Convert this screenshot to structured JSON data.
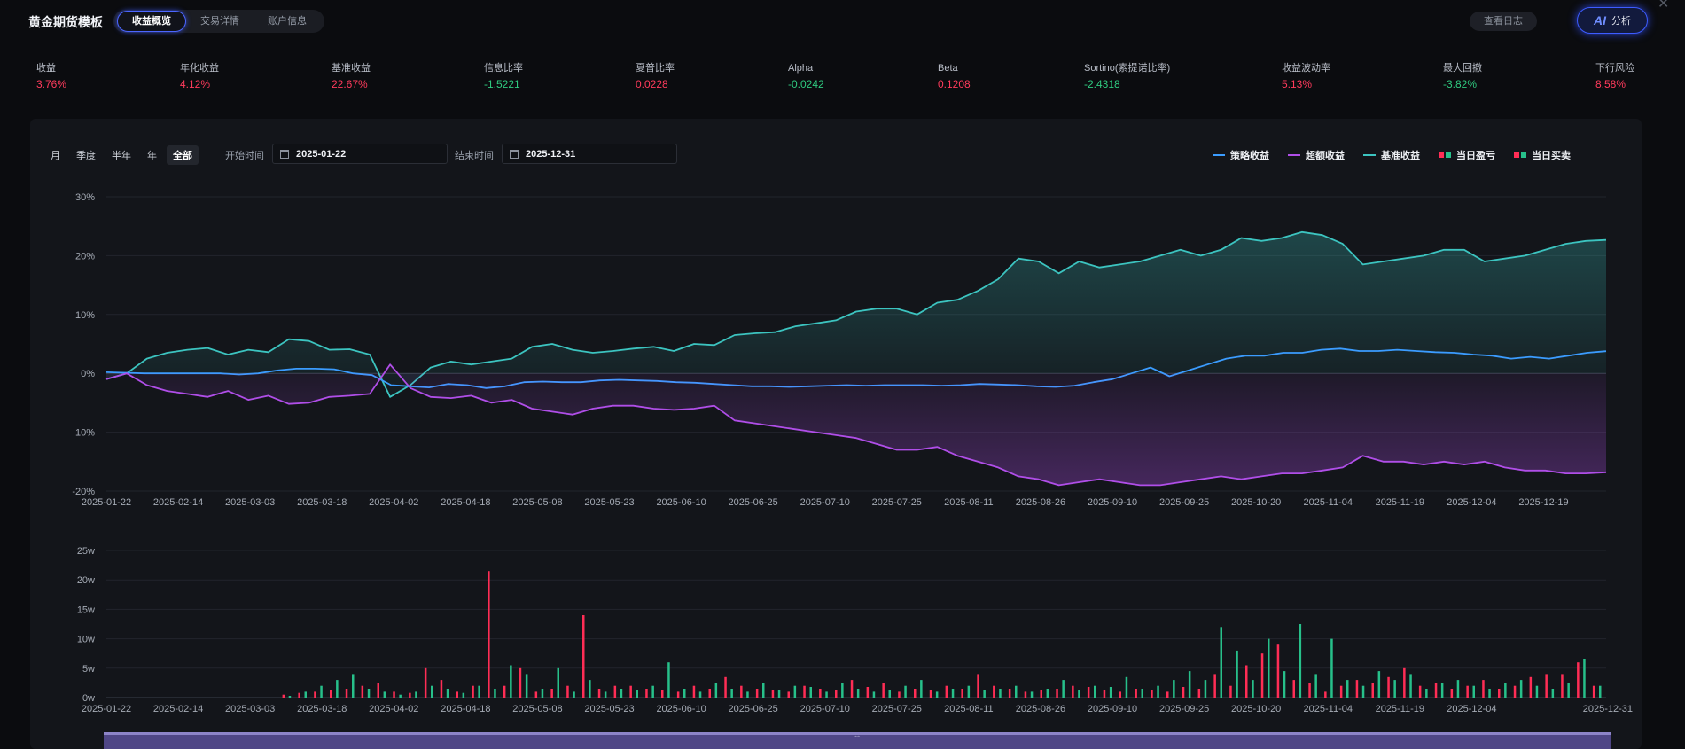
{
  "app": {
    "title": "黄金期货模板"
  },
  "tabs": [
    {
      "label": "收益概览",
      "active": true
    },
    {
      "label": "交易详情",
      "active": false
    },
    {
      "label": "账户信息",
      "active": false
    }
  ],
  "header": {
    "log_label": "查看日志",
    "ai_glyph": "AI",
    "ai_label": "分析"
  },
  "metrics": [
    {
      "label": "收益",
      "value": "3.76%",
      "tone": "up"
    },
    {
      "label": "年化收益",
      "value": "4.12%",
      "tone": "up"
    },
    {
      "label": "基准收益",
      "value": "22.67%",
      "tone": "up"
    },
    {
      "label": "信息比率",
      "value": "-1.5221",
      "tone": "down"
    },
    {
      "label": "夏普比率",
      "value": "0.0228",
      "tone": "up"
    },
    {
      "label": "Alpha",
      "value": "-0.0242",
      "tone": "down"
    },
    {
      "label": "Beta",
      "value": "0.1208",
      "tone": "up"
    },
    {
      "label": "Sortino(索提诺比率)",
      "value": "-2.4318",
      "tone": "down"
    },
    {
      "label": "收益波动率",
      "value": "5.13%",
      "tone": "up"
    },
    {
      "label": "最大回撤",
      "value": "-3.82%",
      "tone": "down"
    },
    {
      "label": "下行风险",
      "value": "8.58%",
      "tone": "up"
    }
  ],
  "filters": {
    "periods": [
      {
        "label": "月",
        "active": false
      },
      {
        "label": "季度",
        "active": false
      },
      {
        "label": "半年",
        "active": false
      },
      {
        "label": "年",
        "active": false
      },
      {
        "label": "全部",
        "active": true
      }
    ],
    "start_label": "开始时间",
    "start_value": "2025-01-22",
    "end_label": "结束时间",
    "end_value": "2025-12-31"
  },
  "legend": [
    {
      "label": "策略收益",
      "color": "#3b9cff",
      "kind": "line"
    },
    {
      "label": "超额收益",
      "color": "#b04ee8",
      "kind": "line"
    },
    {
      "label": "基准收益",
      "color": "#3cc4c0",
      "kind": "line"
    },
    {
      "label": "当日盈亏",
      "colors": [
        "#ff2d55",
        "#27c08a"
      ],
      "kind": "squares"
    },
    {
      "label": "当日买卖",
      "colors": [
        "#ff2d55",
        "#27c08a"
      ],
      "kind": "squares"
    }
  ],
  "colors": {
    "up": "#ff3b5c",
    "down": "#2fc97f",
    "accent": "#4c66ff"
  },
  "chart_data": [
    {
      "type": "line",
      "title": "",
      "ylim": [
        -20,
        30
      ],
      "y_ticks": [
        "30%",
        "20%",
        "10%",
        "0%",
        "-10%",
        "-20%"
      ],
      "y_tick_values": [
        30,
        20,
        10,
        0,
        -10,
        -20
      ],
      "x_ticks": [
        "2025-01-22",
        "2025-02-14",
        "2025-03-03",
        "2025-03-18",
        "2025-04-02",
        "2025-04-18",
        "2025-05-08",
        "2025-05-23",
        "2025-06-10",
        "2025-06-25",
        "2025-07-10",
        "2025-07-25",
        "2025-08-11",
        "2025-08-26",
        "2025-09-10",
        "2025-09-25",
        "2025-10-20",
        "2025-11-04",
        "2025-11-19",
        "2025-12-04",
        "2025-12-19"
      ],
      "series": [
        {
          "name": "基准收益",
          "color": "#3cc4c0",
          "fill": true,
          "values": [
            -1,
            0,
            2.5,
            3.5,
            4,
            4.3,
            3.2,
            4,
            3.6,
            5.8,
            5.5,
            4,
            4.1,
            3.2,
            -4,
            -2,
            1,
            2,
            1.5,
            2,
            2.5,
            4.5,
            5,
            4,
            3.5,
            3.8,
            4.2,
            4.5,
            3.8,
            5,
            4.8,
            6.5,
            6.8,
            7,
            8,
            8.5,
            9,
            10.5,
            11,
            11,
            10,
            12,
            12.5,
            14,
            16,
            19.5,
            19,
            17,
            19,
            18,
            18.5,
            19,
            20,
            21,
            20,
            21,
            23,
            22.5,
            23,
            24,
            23.5,
            22,
            18.5,
            19,
            19.5,
            20,
            21,
            21,
            19,
            19.5,
            20,
            21,
            22,
            22.5,
            22.67
          ]
        },
        {
          "name": "策略收益",
          "color": "#3b9cff",
          "fill": false,
          "values": [
            0.2,
            0.1,
            0,
            0,
            0,
            0,
            0,
            -0.2,
            0,
            0.5,
            0.8,
            0.8,
            0.7,
            0,
            -0.3,
            -2,
            -2.2,
            -2.4,
            -1.8,
            -2,
            -2.5,
            -2.2,
            -1.5,
            -1.4,
            -1.5,
            -1.5,
            -1.2,
            -1.1,
            -1.2,
            -1.3,
            -1.5,
            -1.6,
            -1.8,
            -2,
            -2.2,
            -2.2,
            -2.3,
            -2.2,
            -2.1,
            -2,
            -2.1,
            -2,
            -2,
            -2,
            -2.1,
            -2,
            -1.8,
            -1.9,
            -2,
            -2.2,
            -2.3,
            -2.1,
            -1.5,
            -1,
            0,
            1,
            -0.5,
            0.5,
            1.5,
            2.5,
            3,
            3,
            3.5,
            3.5,
            4,
            4.2,
            3.8,
            3.8,
            4,
            3.8,
            3.6,
            3.5,
            3.2,
            3,
            2.5,
            2.8,
            2.5,
            3,
            3.5,
            3.76
          ]
        },
        {
          "name": "超额收益",
          "color": "#b04ee8",
          "fill": true,
          "values": [
            -1,
            0,
            -2,
            -3,
            -3.5,
            -4,
            -3,
            -4.5,
            -3.8,
            -5.2,
            -5,
            -4,
            -3.8,
            -3.5,
            1.5,
            -2.5,
            -4,
            -4.2,
            -3.8,
            -5,
            -4.5,
            -6,
            -6.5,
            -7,
            -6,
            -5.5,
            -5.5,
            -6,
            -6.2,
            -6,
            -5.5,
            -8,
            -8.5,
            -9,
            -9.5,
            -10,
            -10.5,
            -11,
            -12,
            -13,
            -13,
            -12.5,
            -14,
            -15,
            -16,
            -17.5,
            -18,
            -19,
            -18.5,
            -18,
            -18.5,
            -19,
            -19,
            -18.5,
            -18,
            -17.5,
            -18,
            -17.5,
            -17,
            -17,
            -16.5,
            -16,
            -14,
            -15,
            -15,
            -15.5,
            -15,
            -15.5,
            -15,
            -16,
            -16.5,
            -16.5,
            -17,
            -17,
            -16.8
          ]
        }
      ]
    },
    {
      "type": "bar",
      "title": "",
      "ylim": [
        0,
        25
      ],
      "unit": "w",
      "y_ticks": [
        "25w",
        "20w",
        "15w",
        "10w",
        "5w",
        "0w"
      ],
      "y_tick_values": [
        25,
        20,
        15,
        10,
        5,
        0
      ],
      "x_ticks": [
        "2025-01-22",
        "2025-02-14",
        "2025-03-03",
        "2025-03-18",
        "2025-04-02",
        "2025-04-18",
        "2025-05-08",
        "2025-05-23",
        "2025-06-10",
        "2025-06-25",
        "2025-07-10",
        "2025-07-25",
        "2025-08-11",
        "2025-08-26",
        "2025-09-10",
        "2025-09-25",
        "2025-10-20",
        "2025-11-04",
        "2025-11-19",
        "2025-12-04",
        "2025-12-31"
      ],
      "series": [
        {
          "name": "当日盈亏",
          "color": "#ff2d55",
          "values": [
            0,
            0,
            0,
            0,
            0,
            0,
            0,
            0,
            0,
            0,
            0,
            0.5,
            0.8,
            1,
            1.2,
            1.5,
            2,
            2.5,
            1,
            0.8,
            5,
            3,
            1,
            2,
            21.5,
            2,
            5,
            1,
            1.5,
            2,
            14,
            1.5,
            2,
            2,
            1.5,
            1.2,
            1,
            2,
            1.5,
            3.5,
            2,
            1.5,
            1.2,
            1,
            2,
            1.5,
            1.2,
            3,
            1.8,
            2.5,
            1,
            1.5,
            1.2,
            2,
            1.5,
            4,
            2,
            1.5,
            1,
            1.2,
            1.5,
            2,
            1.8,
            1.2,
            1,
            1.5,
            1.2,
            1,
            1.8,
            1.5,
            4,
            2,
            5.5,
            7.5,
            9,
            3,
            2.5,
            1,
            2,
            3,
            2.5,
            3.5,
            5,
            2,
            2.5,
            1.5,
            2,
            3,
            1.5,
            2,
            3.5,
            4,
            4,
            6,
            2
          ]
        },
        {
          "name": "当日买卖",
          "color": "#27c08a",
          "values": [
            0,
            0,
            0,
            0,
            0,
            0,
            0,
            0,
            0,
            0,
            0,
            0.3,
            1,
            2,
            3,
            4,
            1.5,
            1,
            0.5,
            1,
            2,
            1.5,
            0.8,
            2,
            1.5,
            5.5,
            4,
            1.5,
            5,
            1,
            3,
            1,
            1.5,
            1.2,
            2,
            6,
            1.5,
            1,
            2.5,
            1.5,
            1,
            2.5,
            1.2,
            2,
            1.8,
            1,
            2.5,
            1.5,
            1,
            1.2,
            2,
            3,
            1,
            1.5,
            2,
            1.2,
            1.5,
            2,
            1,
            1.5,
            3,
            1.2,
            2,
            1.8,
            3.5,
            1.5,
            2,
            3,
            4.5,
            3,
            12,
            8,
            3,
            10,
            4.5,
            12.5,
            4,
            10,
            3,
            2,
            4.5,
            3,
            4,
            1.5,
            2.5,
            3,
            2,
            1.5,
            2.5,
            3,
            2,
            1.5,
            2.5,
            6.5,
            2
          ]
        }
      ]
    }
  ]
}
